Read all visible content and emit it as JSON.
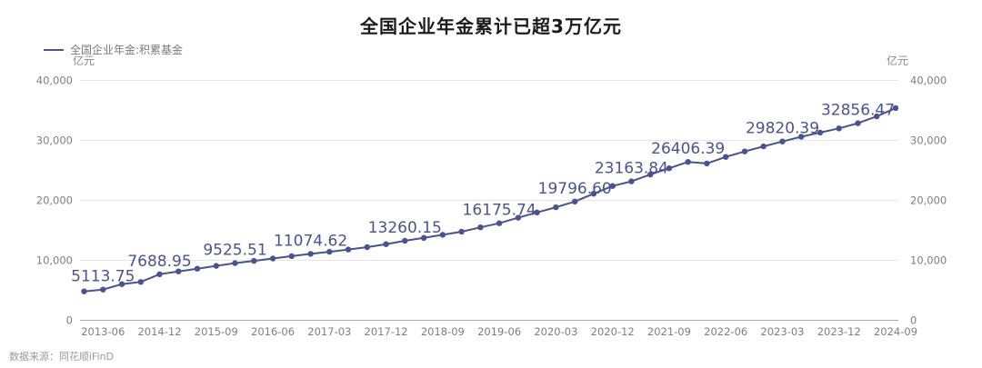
{
  "header": {
    "title": "全国企业年金累计已超3万亿元"
  },
  "legend": {
    "series_label": "全国企业年金:积累基金"
  },
  "axes": {
    "y_unit_left": "亿元",
    "y_unit_right": "亿元"
  },
  "footer": {
    "source": "数据来源：同花顺iFinD"
  },
  "colors": {
    "series": "#4a5390",
    "data_label": "#4a5390",
    "grid": "#e6e6e6",
    "axis_line": "#aaaaaa",
    "axis_text": "#7f7f7f",
    "title": "#1b1b1b"
  },
  "chart_data": {
    "type": "line",
    "title": "全国企业年金累计已超3万亿元",
    "xlabel": "",
    "ylabel": "亿元",
    "ylim": [
      0,
      40000
    ],
    "grid": true,
    "legend_position": "top-left",
    "categories": [
      "2012-12",
      "2013-06",
      "2013-12",
      "2014-06",
      "2014-12",
      "2015-03",
      "2015-06",
      "2015-09",
      "2015-12",
      "2016-03",
      "2016-06",
      "2016-09",
      "2016-12",
      "2017-03",
      "2017-06",
      "2017-09",
      "2017-12",
      "2018-03",
      "2018-06",
      "2018-09",
      "2018-12",
      "2019-03",
      "2019-06",
      "2019-09",
      "2019-12",
      "2020-03",
      "2020-06",
      "2020-09",
      "2020-12",
      "2021-03",
      "2021-06",
      "2021-09",
      "2021-12",
      "2022-03",
      "2022-06",
      "2022-09",
      "2022-12",
      "2023-03",
      "2023-06",
      "2023-09",
      "2023-12",
      "2024-03",
      "2024-06",
      "2024-09"
    ],
    "series": [
      {
        "name": "全国企业年金:积累基金",
        "color": "#4a5390",
        "values": [
          4821.1,
          5113.75,
          6034.71,
          6400,
          7688.95,
          8150,
          8610,
          9070,
          9525.51,
          9910,
          10300,
          10690,
          11074.62,
          11420,
          11800,
          12200,
          12700,
          13260.15,
          13750,
          14250,
          14770.38,
          15500,
          16175.74,
          17100,
          17985.33,
          18850,
          19796.6,
          21100,
          22400,
          23163.84,
          24300,
          25350,
          26406.39,
          26150,
          27250,
          28150,
          29000,
          29820.39,
          30600,
          31300,
          32000,
          32856.47,
          34000,
          35400
        ]
      }
    ],
    "y_ticks": [
      {
        "value": 0,
        "label": "0"
      },
      {
        "value": 10000,
        "label": "10,000"
      },
      {
        "value": 20000,
        "label": "20,000"
      },
      {
        "value": 30000,
        "label": "30,000"
      },
      {
        "value": 40000,
        "label": "40,000"
      }
    ],
    "x_ticks": [
      {
        "index": 1,
        "label": "2013-06"
      },
      {
        "index": 4,
        "label": "2014-12"
      },
      {
        "index": 7,
        "label": "2015-09"
      },
      {
        "index": 10,
        "label": "2016-06"
      },
      {
        "index": 13,
        "label": "2017-03"
      },
      {
        "index": 16,
        "label": "2017-12"
      },
      {
        "index": 19,
        "label": "2018-09"
      },
      {
        "index": 22,
        "label": "2019-06"
      },
      {
        "index": 25,
        "label": "2020-03"
      },
      {
        "index": 28,
        "label": "2020-12"
      },
      {
        "index": 31,
        "label": "2021-09"
      },
      {
        "index": 34,
        "label": "2022-06"
      },
      {
        "index": 37,
        "label": "2023-03"
      },
      {
        "index": 40,
        "label": "2023-12"
      },
      {
        "index": 43,
        "label": "2024-09"
      }
    ],
    "data_labels": [
      {
        "index": 1,
        "text": "5113.75"
      },
      {
        "index": 4,
        "text": "7688.95"
      },
      {
        "index": 8,
        "text": "9525.51"
      },
      {
        "index": 12,
        "text": "11074.62"
      },
      {
        "index": 17,
        "text": "13260.15"
      },
      {
        "index": 22,
        "text": "16175.74"
      },
      {
        "index": 26,
        "text": "19796.60"
      },
      {
        "index": 29,
        "text": "23163.84"
      },
      {
        "index": 32,
        "text": "26406.39"
      },
      {
        "index": 37,
        "text": "29820.39"
      },
      {
        "index": 41,
        "text": "32856.47"
      }
    ]
  }
}
